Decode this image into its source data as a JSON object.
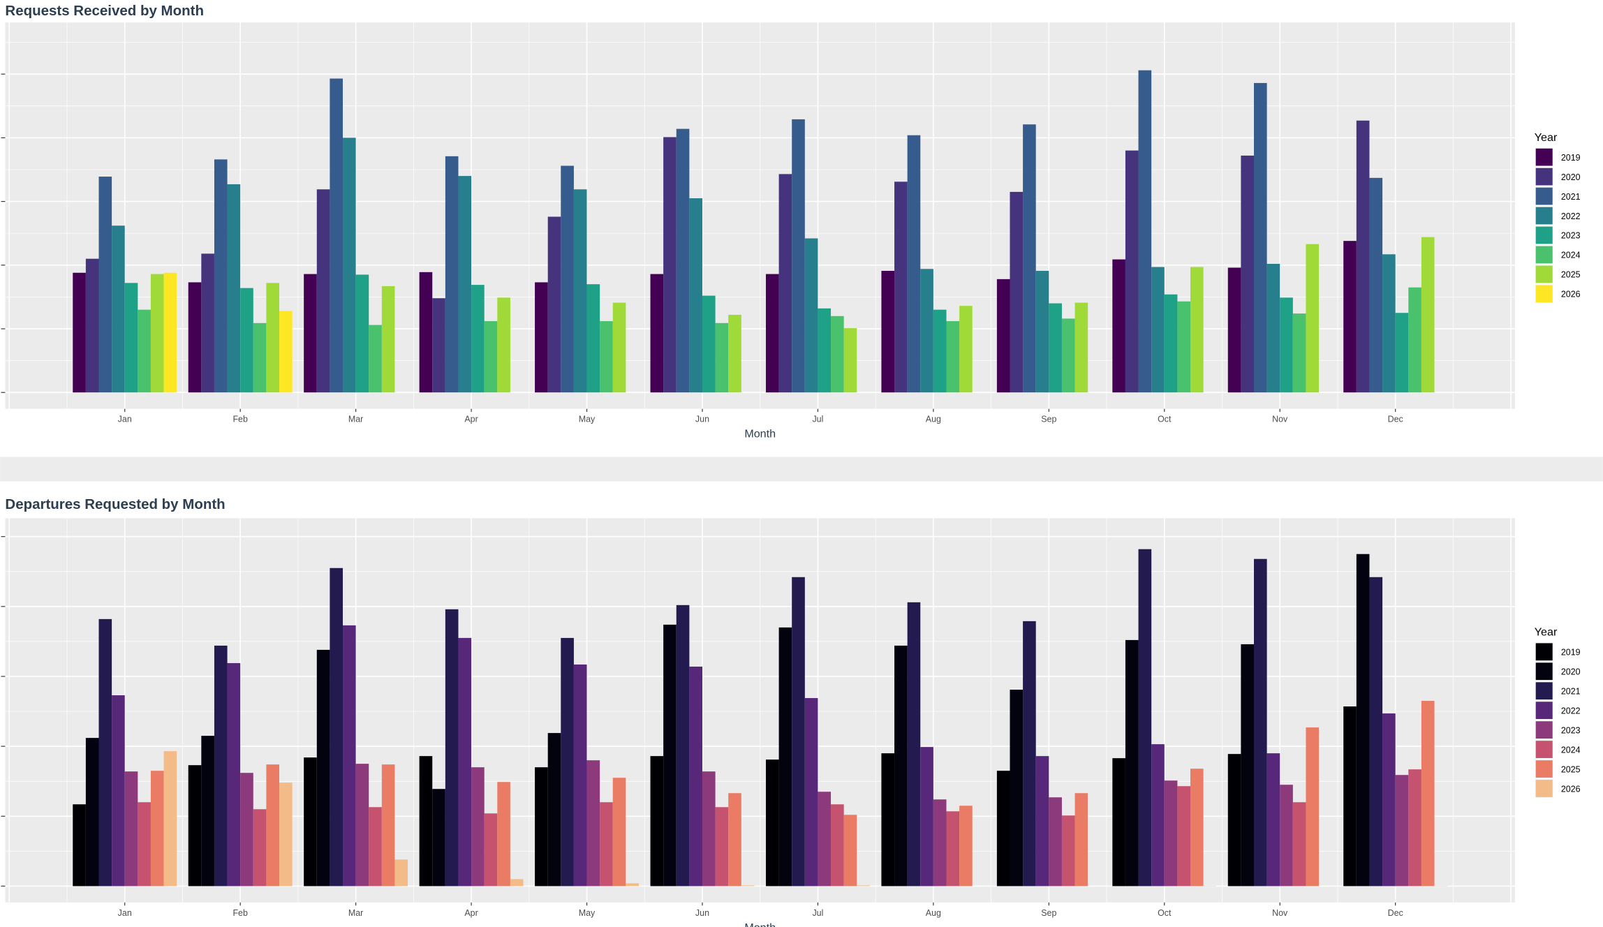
{
  "chart_data": [
    {
      "type": "bar",
      "title": "Requests Received by Month",
      "xlabel": "Month",
      "ylabel": "",
      "ylim": [
        -0.26,
        5.81
      ],
      "y_tick_labels_shown": false,
      "grid": true,
      "legend": {
        "title": "Year",
        "placement": "right"
      },
      "categories": [
        "Jan",
        "Feb",
        "Mar",
        "Apr",
        "May",
        "Jun",
        "Jul",
        "Aug",
        "Sep",
        "Oct",
        "Nov",
        "Dec"
      ],
      "series": [
        {
          "name": "2019",
          "color": "#440154",
          "values": [
            1.88,
            1.73,
            1.86,
            1.89,
            1.73,
            1.86,
            1.86,
            1.91,
            1.78,
            2.09,
            1.96,
            2.38
          ]
        },
        {
          "name": "2020",
          "color": "#46337e",
          "values": [
            2.1,
            2.18,
            3.19,
            1.48,
            2.76,
            4.01,
            3.43,
            3.31,
            3.15,
            3.8,
            3.72,
            4.27
          ]
        },
        {
          "name": "2021",
          "color": "#365c8d",
          "values": [
            3.39,
            3.66,
            4.93,
            3.71,
            3.56,
            4.14,
            4.29,
            4.04,
            4.21,
            5.06,
            4.86,
            3.37
          ]
        },
        {
          "name": "2022",
          "color": "#277f8e",
          "values": [
            2.62,
            3.27,
            4.0,
            3.4,
            3.19,
            3.05,
            2.42,
            1.94,
            1.91,
            1.97,
            2.02,
            2.17
          ]
        },
        {
          "name": "2023",
          "color": "#1fa187",
          "values": [
            1.72,
            1.64,
            1.85,
            1.69,
            1.7,
            1.52,
            1.32,
            1.3,
            1.4,
            1.54,
            1.49,
            1.25
          ]
        },
        {
          "name": "2024",
          "color": "#4ac16d",
          "values": [
            1.3,
            1.09,
            1.06,
            1.12,
            1.12,
            1.09,
            1.2,
            1.12,
            1.16,
            1.43,
            1.24,
            1.65
          ]
        },
        {
          "name": "2025",
          "color": "#a0da39",
          "values": [
            1.86,
            1.72,
            1.67,
            1.49,
            1.41,
            1.22,
            1.01,
            1.36,
            1.41,
            1.97,
            2.33,
            2.44
          ]
        },
        {
          "name": "2026",
          "color": "#fde725",
          "values": [
            1.88,
            1.28,
            null,
            null,
            null,
            null,
            null,
            null,
            null,
            null,
            null,
            null
          ]
        }
      ]
    },
    {
      "type": "bar",
      "title": "Departures Requested by Month",
      "xlabel": "Month",
      "ylabel": "",
      "ylim": [
        -0.23,
        5.26
      ],
      "y_tick_labels_shown": false,
      "grid": true,
      "legend": {
        "title": "Year",
        "placement": "right"
      },
      "categories": [
        "Jan",
        "Feb",
        "Mar",
        "Apr",
        "May",
        "Jun",
        "Jul",
        "Aug",
        "Sep",
        "Oct",
        "Nov",
        "Dec"
      ],
      "series": [
        {
          "name": "2019",
          "color": "#000004",
          "values": [
            1.17,
            1.73,
            1.84,
            1.86,
            1.7,
            1.86,
            1.81,
            1.9,
            1.65,
            1.83,
            1.89,
            2.57
          ]
        },
        {
          "name": "2020",
          "color": "#03030f",
          "values": [
            2.12,
            2.15,
            3.38,
            1.39,
            2.19,
            3.74,
            3.7,
            3.44,
            2.81,
            3.52,
            3.46,
            4.75
          ]
        },
        {
          "name": "2021",
          "color": "#231a4f",
          "values": [
            3.82,
            3.44,
            4.55,
            3.96,
            3.55,
            4.02,
            4.42,
            4.06,
            3.79,
            4.82,
            4.68,
            4.42
          ]
        },
        {
          "name": "2022",
          "color": "#57287a",
          "values": [
            2.73,
            3.19,
            3.73,
            3.55,
            3.17,
            3.14,
            2.69,
            1.99,
            1.86,
            2.03,
            1.9,
            2.47
          ]
        },
        {
          "name": "2023",
          "color": "#8c3a7b",
          "values": [
            1.64,
            1.62,
            1.75,
            1.7,
            1.8,
            1.64,
            1.35,
            1.24,
            1.27,
            1.51,
            1.45,
            1.59
          ]
        },
        {
          "name": "2024",
          "color": "#c5526f",
          "values": [
            1.2,
            1.1,
            1.13,
            1.04,
            1.2,
            1.13,
            1.17,
            1.07,
            1.01,
            1.43,
            1.2,
            1.67
          ]
        },
        {
          "name": "2025",
          "color": "#ea7c66",
          "values": [
            1.65,
            1.74,
            1.74,
            1.49,
            1.55,
            1.33,
            1.02,
            1.15,
            1.33,
            1.68,
            2.27,
            2.65
          ]
        },
        {
          "name": "2026",
          "color": "#f3bb88",
          "values": [
            1.93,
            1.48,
            0.38,
            0.1,
            0.04,
            0.01,
            0.01,
            0.0,
            0.0,
            0.005,
            null,
            0.005
          ]
        }
      ]
    }
  ]
}
